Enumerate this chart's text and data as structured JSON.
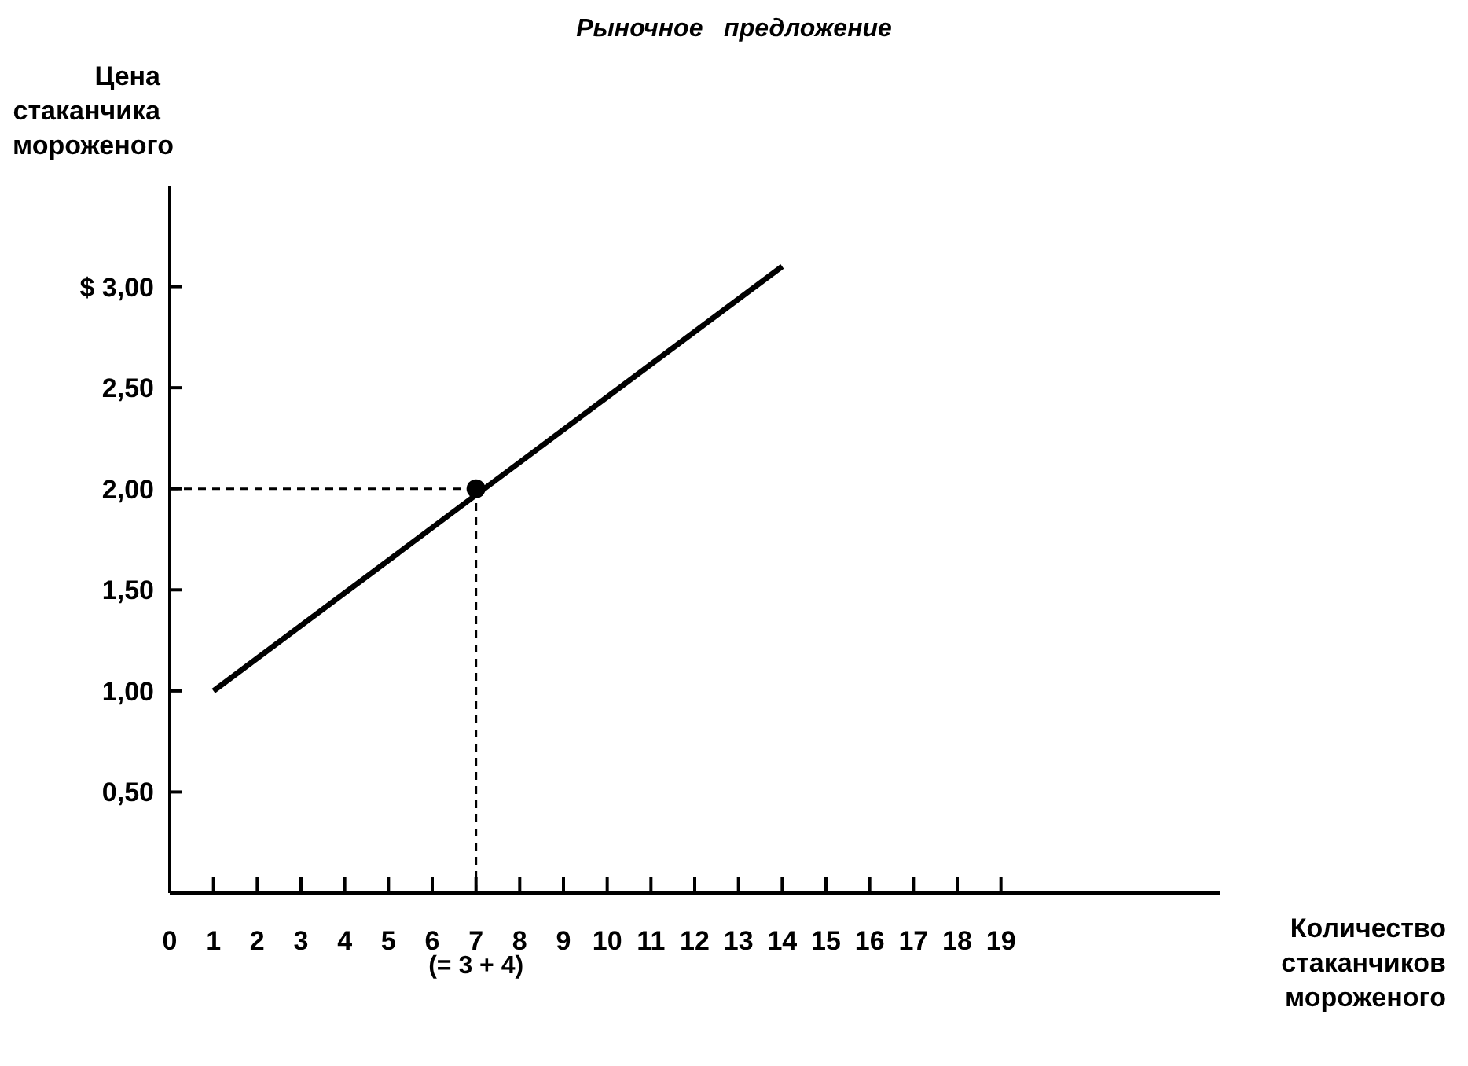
{
  "chart_data": {
    "type": "line",
    "title": "Рыночное   предложение",
    "ylabel": "Цена\nстаканчика\nмороженого",
    "xlabel": "Количество\nстаканчиков\nмороженого",
    "annotations": [
      "(= 3 + 4)"
    ],
    "series": [
      {
        "color": "#000000",
        "x": [
          1,
          14
        ],
        "values": [
          1.0,
          3.1
        ]
      },
      {
        "type": "scatter",
        "color": "#000000",
        "x": [
          7
        ],
        "values": [
          2.0
        ]
      }
    ],
    "ref_lines": [
      {
        "axis": "x",
        "value": 7,
        "line_style": "dashed",
        "color": "#000000"
      },
      {
        "axis": "y",
        "value": 2,
        "line_style": "dashed",
        "color": "#000000"
      }
    ],
    "xlim": [
      0,
      24
    ],
    "xticks": [
      0,
      1,
      2,
      3,
      4,
      5,
      6,
      7,
      8,
      9,
      10,
      11,
      12,
      13,
      14,
      15,
      16,
      17,
      18,
      19
    ],
    "ylim": [
      0,
      3.5
    ],
    "yticks": [
      {
        "value": 0.5,
        "label": "0,50"
      },
      {
        "value": 1,
        "label": "1,00"
      },
      {
        "value": 1.5,
        "label": "1,50"
      },
      {
        "value": 2,
        "label": "2,00"
      },
      {
        "value": 2.5,
        "label": "2,50"
      },
      {
        "value": 3,
        "label": "$ 3,00"
      }
    ],
    "grid": false,
    "line_style": "solid"
  }
}
